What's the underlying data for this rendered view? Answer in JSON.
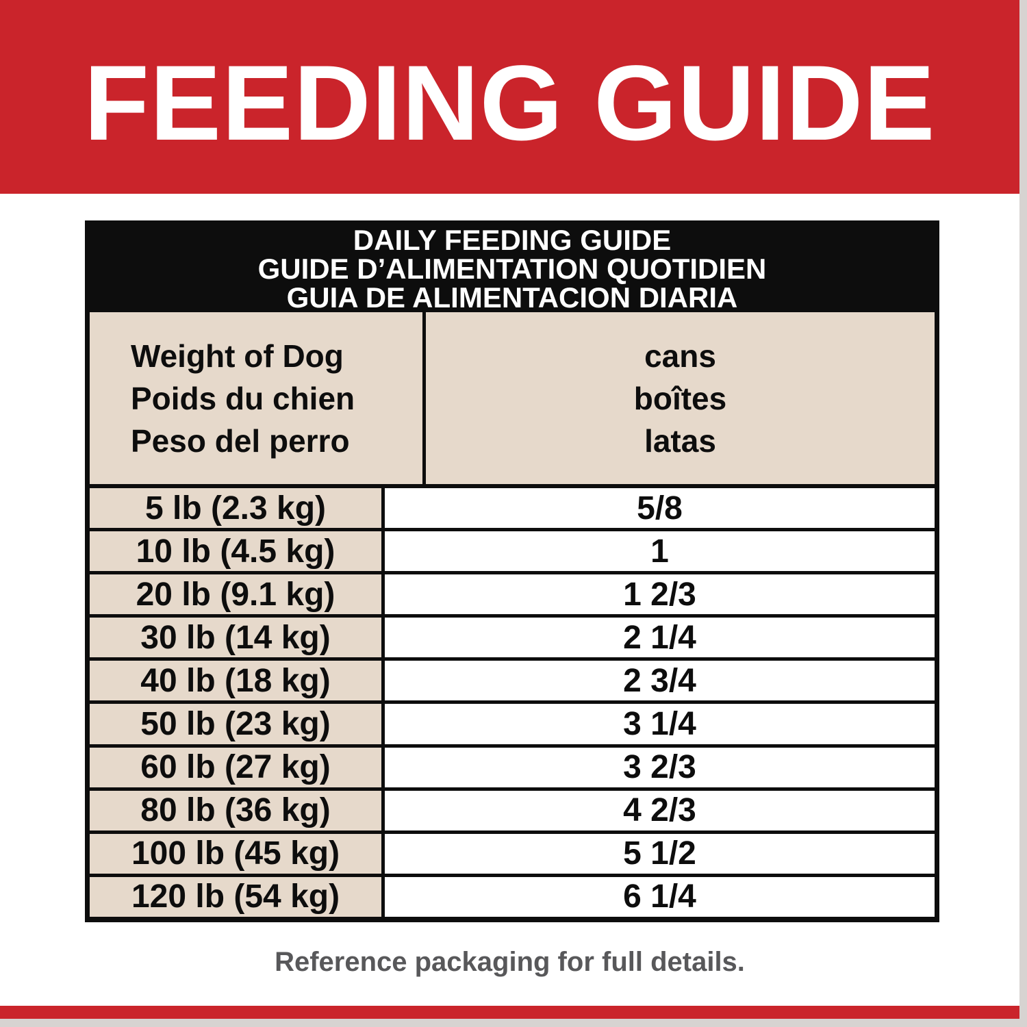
{
  "header": {
    "title": "FEEDING GUIDE"
  },
  "table": {
    "title_lines": [
      "DAILY FEEDING GUIDE",
      "GUIDE D’ALIMENTATION QUOTIDIEN",
      "GUIA DE ALIMENTACION DIARIA"
    ],
    "columns": {
      "weight_lines": [
        "Weight of Dog",
        "Poids du chien",
        "Peso del perro"
      ],
      "cans_lines": [
        "cans",
        "boîtes",
        "latas"
      ]
    },
    "rows": [
      {
        "weight": "5 lb (2.3 kg)",
        "cans": "5/8"
      },
      {
        "weight": "10 lb (4.5 kg)",
        "cans": "1"
      },
      {
        "weight": "20 lb (9.1 kg)",
        "cans": "1 2/3"
      },
      {
        "weight": "30 lb (14 kg)",
        "cans": "2 1/4"
      },
      {
        "weight": "40 lb (18 kg)",
        "cans": "2 3/4"
      },
      {
        "weight": "50 lb (23 kg)",
        "cans": "3 1/4"
      },
      {
        "weight": "60 lb (27 kg)",
        "cans": "3 2/3"
      },
      {
        "weight": "80 lb (36 kg)",
        "cans": "4 2/3"
      },
      {
        "weight": "100 lb (45 kg)",
        "cans": "5 1/2"
      },
      {
        "weight": "120 lb (54 kg)",
        "cans": "6 1/4"
      }
    ]
  },
  "footer": {
    "note": "Reference packaging for full details."
  },
  "colors": {
    "brand_red": "#ca242b",
    "table_beige": "#e6d9cb",
    "table_black": "#0d0d0d",
    "footer_gray": "#58585a",
    "frame_gray": "#d7d3d1"
  }
}
